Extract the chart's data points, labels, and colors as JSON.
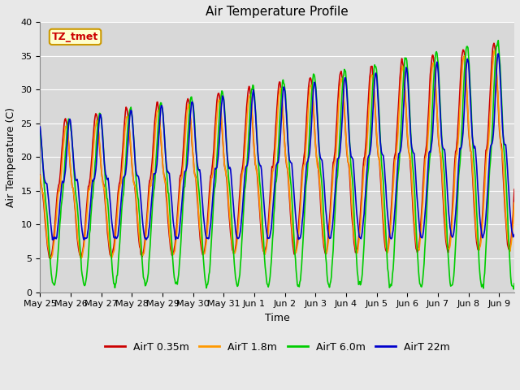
{
  "title": "Air Temperature Profile",
  "xlabel": "Time",
  "ylabel": "Air Temperature (C)",
  "annotation_text": "TZ_tmet",
  "ylim": [
    0,
    40
  ],
  "xlim_days": [
    0,
    15.5
  ],
  "tick_labels": [
    "May 25",
    "May 26",
    "May 27",
    "May 28",
    "May 29",
    "May 30",
    "May 31",
    "Jun 1",
    "Jun 2",
    "Jun 3",
    "Jun 4",
    "Jun 5",
    "Jun 6",
    "Jun 7",
    "Jun 8",
    "Jun 9"
  ],
  "line_colors": [
    "#cc0000",
    "#ff9900",
    "#00cc00",
    "#0000cc"
  ],
  "line_labels": [
    "AirT 0.35m",
    "AirT 1.8m",
    "AirT 6.0m",
    "AirT 22m"
  ],
  "bg_color": "#e8e8e8",
  "plot_bg_color": "#d8d8d8",
  "annotation_bg": "#ffffcc",
  "annotation_border": "#cc9900",
  "annotation_text_color": "#cc0000",
  "grid_color": "#ffffff",
  "title_fontsize": 11,
  "label_fontsize": 9,
  "tick_fontsize": 8,
  "legend_fontsize": 9
}
